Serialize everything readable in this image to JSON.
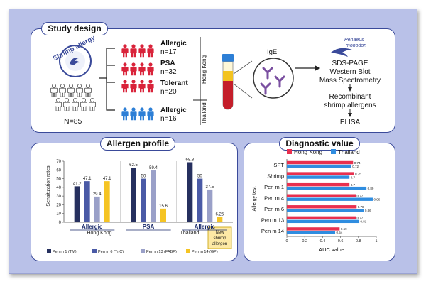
{
  "colors": {
    "red": "#d9233a",
    "blue": "#2d7fd6",
    "dark": "#3a4a9a",
    "c1": "#26305f",
    "c2": "#4a5aa6",
    "c3": "#9aa0c8",
    "c4": "#f5c423",
    "hk": "#e8304f",
    "th": "#2f8de0",
    "gray": "#c8ccd6"
  },
  "study": {
    "title": "Study design",
    "shrimp_allergy": "Shrimp allergy",
    "n_total": "N=85",
    "groups": [
      {
        "label": "Allergic",
        "n": "n=17"
      },
      {
        "label": "PSA",
        "n": "n=32"
      },
      {
        "label": "Tolerant",
        "n": "n=20"
      },
      {
        "label": "Allergic",
        "n": "n=16"
      }
    ],
    "hong_kong": "Hong Kong",
    "thailand": "Thailand",
    "ige": "IgE",
    "species_1": "Penaeus",
    "species_2": "monodon",
    "method_1": "SDS-PAGE",
    "method_2": "Western Blot",
    "method_3": "Mass Spectrometry",
    "recomb_1": "Recombinant",
    "recomb_2": "shrimp allergens",
    "elisa": "ELISA"
  },
  "profile": {
    "title": "Allergen profile",
    "ylabel": "Sensitization rates",
    "group_hk": "Hong Kong",
    "group_th": "Thailand",
    "new_label_1": "New",
    "new_label_2": "shrimp",
    "new_label_3": "allergen"
  },
  "diag": {
    "title": "Diagnostic value"
  },
  "chart_data": [
    {
      "type": "bar",
      "ylabel": "Sensitization rates",
      "ylim": [
        0,
        70
      ],
      "yticks": [
        0,
        10,
        20,
        30,
        40,
        50,
        60,
        70
      ],
      "categories": [
        "Allergic",
        "PSA",
        "Allergic"
      ],
      "series": [
        {
          "name": "Pen m 1 (TM)",
          "values": [
            41.2,
            62.5,
            68.8
          ]
        },
        {
          "name": "Pen m 6 (TnC)",
          "values": [
            47.1,
            50,
            50
          ]
        },
        {
          "name": "Pen m 13 (FABP)",
          "values": [
            29.4,
            59.4,
            37.5
          ]
        },
        {
          "name": "Pen m 14 (GP)",
          "values": [
            47.1,
            15.6,
            6.25
          ]
        }
      ]
    },
    {
      "type": "bar",
      "orientation": "horizontal",
      "xlabel": "AUC value",
      "ylabel": "Allergy test",
      "xlim": [
        0,
        1
      ],
      "xticks": [
        "0",
        "0.2",
        "0.4",
        "0.6",
        "0.8",
        "1"
      ],
      "categories": [
        "SPT",
        "Shrimp",
        "Pen m 1",
        "Pen m 4",
        "Pen m 6",
        "Pen m 13",
        "Pen m 14"
      ],
      "series": [
        {
          "name": "Hong Kong",
          "values": [
            0.74,
            0.75,
            0.7,
            0.77,
            0.78,
            0.77,
            0.59
          ]
        },
        {
          "name": "Thailand",
          "values": [
            0.72,
            0.7,
            0.89,
            0.96,
            0.86,
            0.81,
            0.54
          ]
        }
      ],
      "legend": "top"
    }
  ]
}
